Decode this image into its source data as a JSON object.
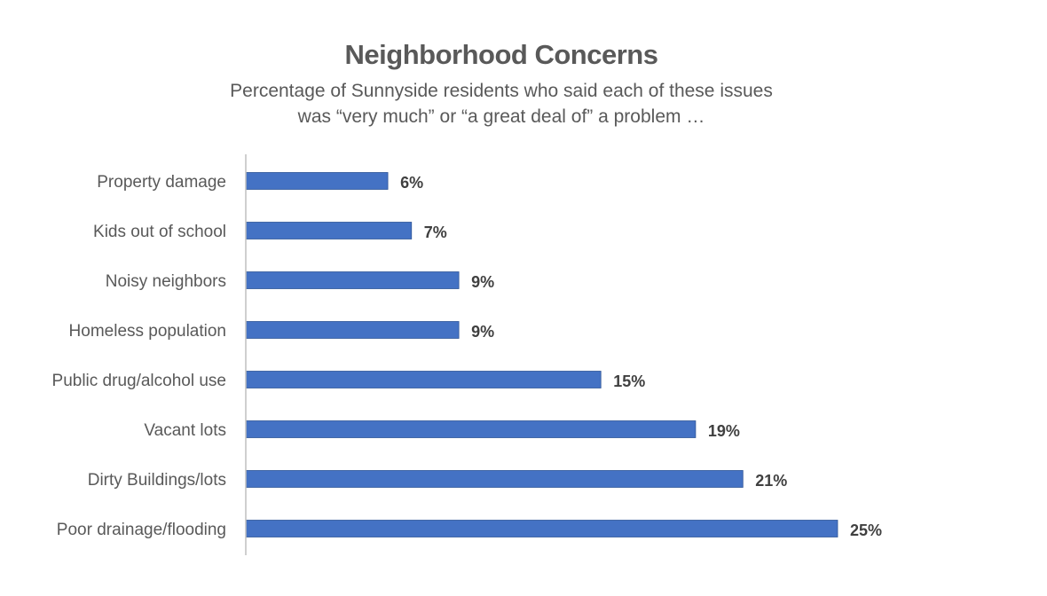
{
  "chart_data": {
    "type": "bar",
    "orientation": "horizontal",
    "title": "Neighborhood Concerns",
    "subtitle": [
      "Percentage of Sunnyside residents who said each of these issues",
      "was “very much” or “a great deal of” a problem …"
    ],
    "categories": [
      "Property damage",
      "Kids out of school",
      "Noisy neighbors",
      "Homeless population",
      "Public drug/alcohol use",
      "Vacant lots",
      "Dirty Buildings/lots",
      "Poor drainage/flooding"
    ],
    "values": [
      6,
      7,
      9,
      9,
      15,
      19,
      21,
      25
    ],
    "value_labels": [
      "6%",
      "7%",
      "9%",
      "9%",
      "15%",
      "19%",
      "21%",
      "25%"
    ],
    "unit": "%",
    "xlim": [
      0,
      25
    ],
    "grid": false,
    "legend": "none",
    "bar_color": "#4472C4"
  }
}
